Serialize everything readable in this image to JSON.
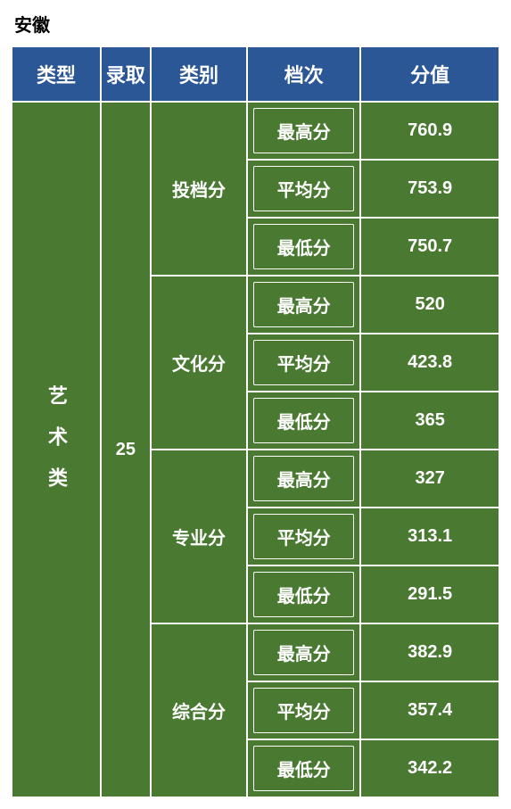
{
  "province": "安徽",
  "headers": {
    "type": "类型",
    "admit": "录取",
    "category": "类别",
    "tier": "档次",
    "score": "分值"
  },
  "row": {
    "type": "艺术类",
    "admit": "25"
  },
  "categories": [
    {
      "name": "投档分",
      "tiers": [
        {
          "label": "最高分",
          "value": "760.9"
        },
        {
          "label": "平均分",
          "value": "753.9"
        },
        {
          "label": "最低分",
          "value": "750.7"
        }
      ]
    },
    {
      "name": "文化分",
      "tiers": [
        {
          "label": "最高分",
          "value": "520"
        },
        {
          "label": "平均分",
          "value": "423.8"
        },
        {
          "label": "最低分",
          "value": "365"
        }
      ]
    },
    {
      "name": "专业分",
      "tiers": [
        {
          "label": "最高分",
          "value": "327"
        },
        {
          "label": "平均分",
          "value": "313.1"
        },
        {
          "label": "最低分",
          "value": "291.5"
        }
      ]
    },
    {
      "name": "综合分",
      "tiers": [
        {
          "label": "最高分",
          "value": "382.9"
        },
        {
          "label": "平均分",
          "value": "357.4"
        },
        {
          "label": "最低分",
          "value": "342.2"
        }
      ]
    }
  ],
  "colors": {
    "header_bg": "#2b5796",
    "body_bg": "#4a7a32",
    "border": "#ffffff",
    "text": "#ffffff"
  }
}
